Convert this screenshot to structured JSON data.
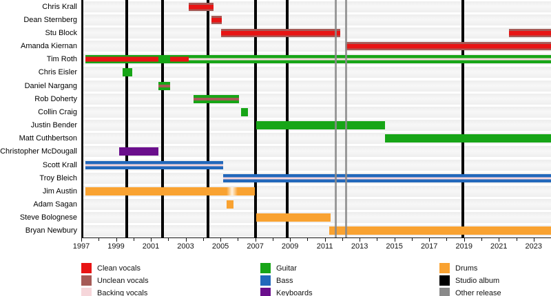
{
  "colors": {
    "clean": "#e81414",
    "unclean": "#a65a56",
    "backing": "#f6d6da",
    "guitar": "#17a517",
    "bass": "#2268bb",
    "keys": "#6a0e8c",
    "drums": "#f9a231",
    "album": "#000000",
    "other": "#8a8a8a"
  },
  "chart_data": {
    "type": "timeline",
    "title": "Band members timeline (vocals, guitar, bass, keyboards, drums)",
    "x_axis": {
      "range": [
        1997,
        2024
      ],
      "tick_label_years": [
        1997,
        1999,
        2001,
        2003,
        2005,
        2007,
        2009,
        2011,
        2013,
        2015,
        2017,
        2019,
        2021,
        2023
      ],
      "minor_tick_step": 1
    },
    "members": [
      {
        "name": "Chris Krall",
        "segments": [
          {
            "from": 2003.05,
            "to": 2004.5,
            "roles": "clean_unclean"
          }
        ]
      },
      {
        "name": "Dean Sternberg",
        "segments": [
          {
            "from": 2004.38,
            "to": 2004.96,
            "roles": "clean_unclean"
          }
        ]
      },
      {
        "name": "Stu Block",
        "segments": [
          {
            "from": 2004.9,
            "to": 2011.78,
            "roles": "clean_unclean"
          },
          {
            "from": 2021.48,
            "to": 2024,
            "roles": "clean_unclean"
          }
        ]
      },
      {
        "name": "Amanda Kiernan",
        "segments": [
          {
            "from": 2012.1,
            "to": 2024,
            "roles": "clean_unclean"
          }
        ]
      },
      {
        "name": "Tim Roth",
        "segments": [
          {
            "from": 1997.1,
            "to": 2001.3,
            "roles": "guitar_clean"
          },
          {
            "from": 2001.3,
            "to": 2001.97,
            "roles": "guitar"
          },
          {
            "from": 2001.97,
            "to": 2003.05,
            "roles": "guitar_clean"
          },
          {
            "from": 2003.05,
            "to": 2024,
            "roles": "guitar_backing"
          }
        ]
      },
      {
        "name": "Chris Eisler",
        "segments": [
          {
            "from": 1999.24,
            "to": 1999.83,
            "roles": "guitar"
          }
        ]
      },
      {
        "name": "Daniel Nargang",
        "segments": [
          {
            "from": 2001.3,
            "to": 2001.97,
            "roles": "guitar_unclean"
          }
        ]
      },
      {
        "name": "Rob Doherty",
        "segments": [
          {
            "from": 2003.35,
            "to": 2005.95,
            "roles": "guitar_unclean"
          }
        ]
      },
      {
        "name": "Collin Craig",
        "segments": [
          {
            "from": 2006.05,
            "to": 2006.48,
            "roles": "guitar"
          }
        ]
      },
      {
        "name": "Justin Bender",
        "segments": [
          {
            "from": 2006.95,
            "to": 2014.33,
            "roles": "guitar"
          }
        ]
      },
      {
        "name": "Matt Cuthbertson",
        "segments": [
          {
            "from": 2014.33,
            "to": 2024,
            "roles": "guitar"
          }
        ]
      },
      {
        "name": "Christopher McDougall",
        "segments": [
          {
            "from": 1999.05,
            "to": 2001.3,
            "roles": "keyboards"
          }
        ]
      },
      {
        "name": "Scott Krall",
        "segments": [
          {
            "from": 1997.1,
            "to": 2005.05,
            "roles": "bass_backing"
          }
        ]
      },
      {
        "name": "Troy Bleich",
        "segments": [
          {
            "from": 2005.02,
            "to": 2024,
            "roles": "bass_backing"
          }
        ]
      },
      {
        "name": "Jim Austin",
        "segments": [
          {
            "from": 1997.1,
            "to": 2005.25,
            "roles": "drums"
          },
          {
            "from": 2005.25,
            "to": 2005.85,
            "roles": "drums_fade"
          },
          {
            "from": 2005.85,
            "to": 2006.85,
            "roles": "drums"
          }
        ]
      },
      {
        "name": "Adam Sagan",
        "segments": [
          {
            "from": 2005.25,
            "to": 2005.65,
            "roles": "drums"
          }
        ]
      },
      {
        "name": "Steve Bolognese",
        "segments": [
          {
            "from": 2006.92,
            "to": 2011.22,
            "roles": "drums"
          }
        ]
      },
      {
        "name": "Bryan Newbury",
        "segments": [
          {
            "from": 2011.15,
            "to": 2024,
            "roles": "drums"
          }
        ]
      }
    ],
    "releases": {
      "studio_albums_years": [
        1999.5,
        2001.55,
        2004.15,
        2006.88,
        2008.72,
        2018.8
      ],
      "other_releases_years": [
        2011.5,
        2012.12
      ]
    }
  },
  "legend": {
    "columns": [
      [
        {
          "label": "Clean vocals",
          "color_key": "clean"
        },
        {
          "label": "Unclean vocals",
          "color_key": "unclean"
        },
        {
          "label": "Backing vocals",
          "color_key": "backing"
        }
      ],
      [
        {
          "label": "Guitar",
          "color_key": "guitar"
        },
        {
          "label": "Bass",
          "color_key": "bass"
        },
        {
          "label": "Keyboards",
          "color_key": "keys"
        }
      ],
      [
        {
          "label": "Drums",
          "color_key": "drums"
        },
        {
          "label": "Studio album",
          "color_key": "album"
        },
        {
          "label": "Other release",
          "color_key": "other"
        }
      ]
    ]
  }
}
